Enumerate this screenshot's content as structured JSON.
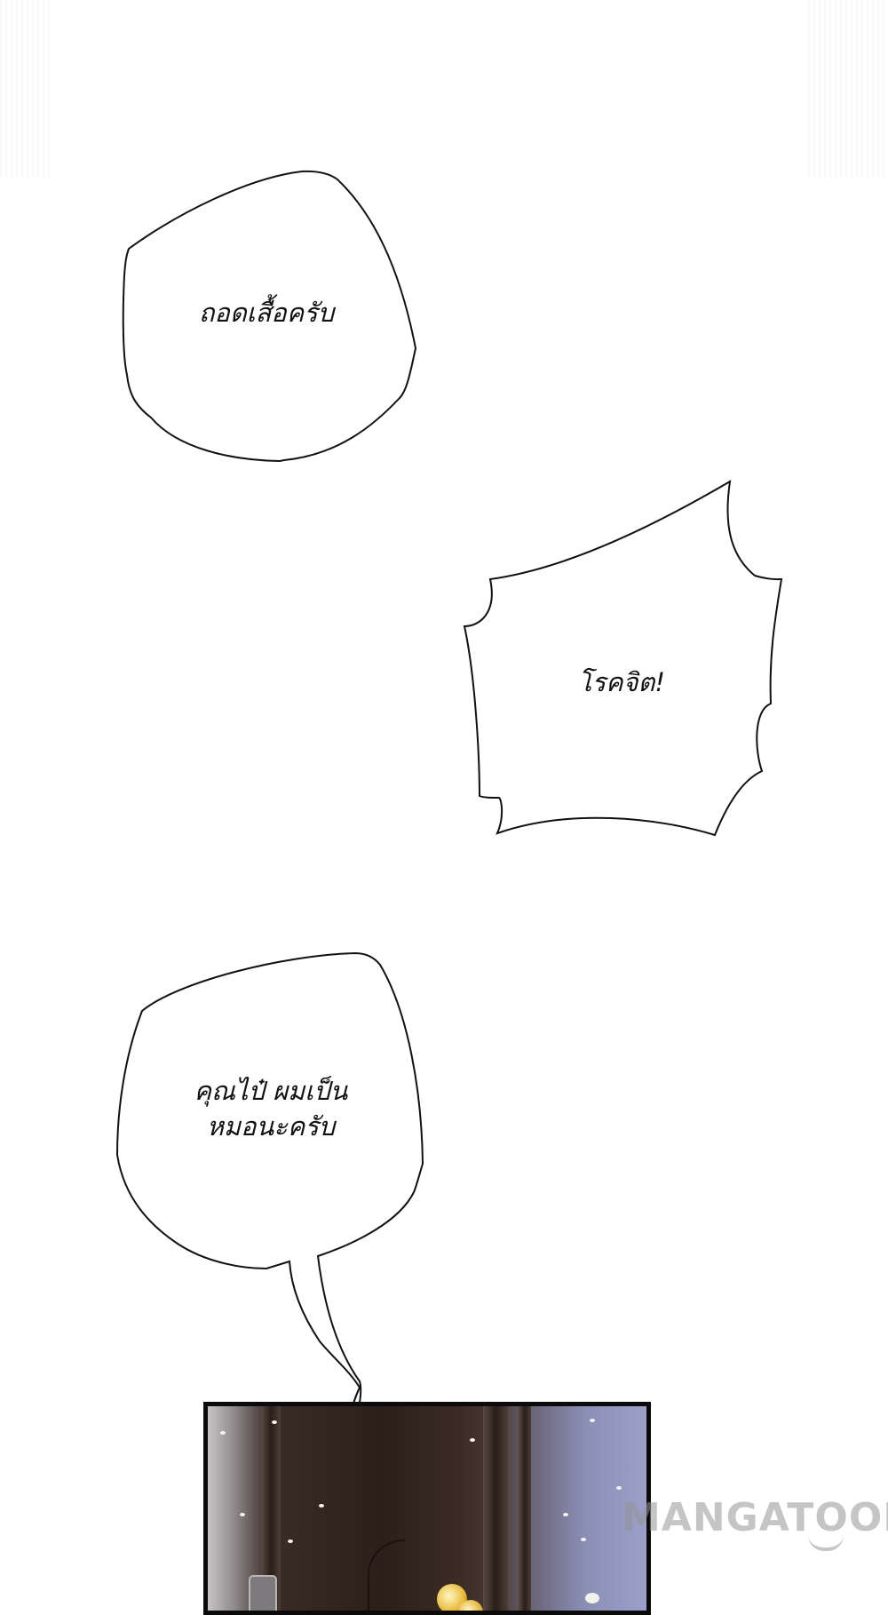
{
  "bubbles": [
    {
      "text": "ถอดเสื้อครับ"
    },
    {
      "text": "โรคจิต!"
    },
    {
      "lines": [
        "คุณไป๋ ผมเป็น",
        "หมอนะครับ"
      ]
    }
  ],
  "watermark": "MANGATOON",
  "colors": {
    "background": "#ffffff",
    "bubble_stroke": "#111111",
    "panel_border": "#0b0b0b"
  }
}
